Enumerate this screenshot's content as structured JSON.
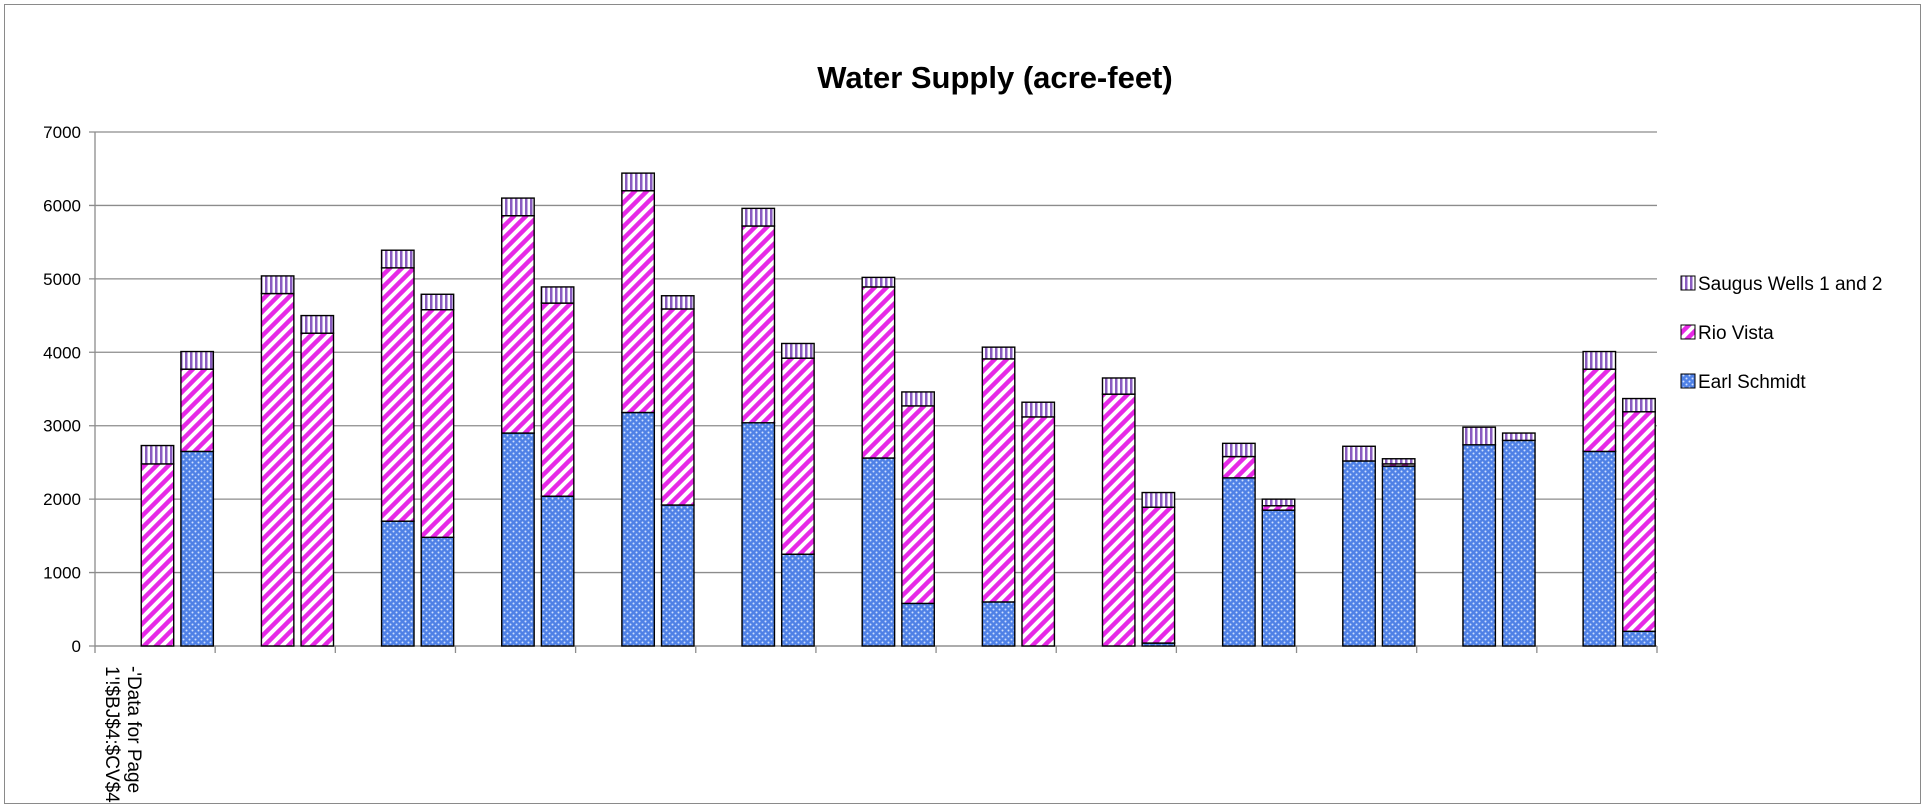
{
  "chart_data": {
    "type": "bar",
    "stacked": true,
    "title": "Water Supply (acre-feet)",
    "xlabel": "",
    "ylabel": "",
    "ylim": [
      0,
      7000
    ],
    "yticks": [
      0,
      1000,
      2000,
      3000,
      4000,
      5000,
      6000,
      7000
    ],
    "grid": true,
    "legend_position": "right",
    "category_label_lines": [
      "-'Data for Page",
      "1'!$BJ$4:$CV$4"
    ],
    "groups": 13,
    "bars_per_group": 2,
    "series": [
      {
        "name": "Earl Schmidt",
        "color": "#4f81e6",
        "pattern": "dots",
        "values": [
          0,
          2650,
          0,
          0,
          1700,
          1480,
          2900,
          2040,
          3180,
          1920,
          3040,
          1250,
          2560,
          580,
          600,
          0,
          0,
          40,
          2290,
          1850,
          2520,
          2450,
          2740,
          2800,
          2650,
          200
        ]
      },
      {
        "name": "Rio Vista",
        "color": "#e629e6",
        "pattern": "diagonal",
        "values": [
          2480,
          1120,
          4800,
          4260,
          3450,
          3100,
          2960,
          2630,
          3020,
          2670,
          2680,
          2670,
          2330,
          2690,
          3310,
          3120,
          3430,
          1850,
          290,
          60,
          0,
          30,
          0,
          0,
          1120,
          2990
        ]
      },
      {
        "name": "Saugus Wells 1 and 2",
        "color": "#b27ccf",
        "pattern": "vertical",
        "values": [
          250,
          240,
          240,
          240,
          240,
          210,
          240,
          220,
          240,
          180,
          240,
          200,
          130,
          190,
          160,
          200,
          220,
          200,
          180,
          90,
          200,
          70,
          240,
          100,
          240,
          180
        ]
      }
    ]
  }
}
